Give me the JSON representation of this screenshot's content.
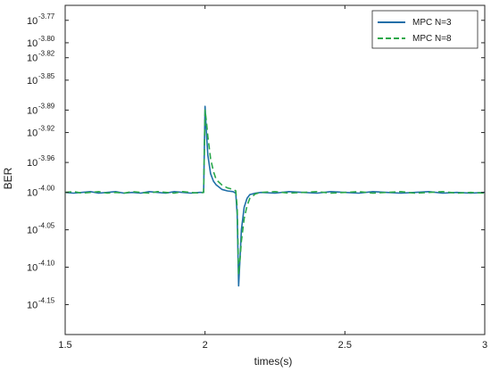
{
  "chart_data": {
    "type": "line",
    "xlabel": "times(s)",
    "ylabel": "BER",
    "xlim": [
      1.5,
      3.0
    ],
    "ylim": [
      -4.19,
      -3.75
    ],
    "x_ticks": [
      {
        "value": 1.5,
        "label": "1.5"
      },
      {
        "value": 2.0,
        "label": "2"
      },
      {
        "value": 2.5,
        "label": "2.5"
      },
      {
        "value": 3.0,
        "label": "3"
      }
    ],
    "y_ticks": [
      {
        "value": -3.77,
        "base": "10",
        "exp": "-3.77"
      },
      {
        "value": -3.8,
        "base": "10",
        "exp": "-3.80"
      },
      {
        "value": -3.82,
        "base": "10",
        "exp": "-3.82"
      },
      {
        "value": -3.85,
        "base": "10",
        "exp": "-3.85"
      },
      {
        "value": -3.89,
        "base": "10",
        "exp": "-3.89"
      },
      {
        "value": -3.92,
        "base": "10",
        "exp": "-3.92"
      },
      {
        "value": -3.96,
        "base": "10",
        "exp": "-3.96"
      },
      {
        "value": -4.0,
        "base": "10",
        "exp": "-4.00"
      },
      {
        "value": -4.05,
        "base": "10",
        "exp": "-4.05"
      },
      {
        "value": -4.1,
        "base": "10",
        "exp": "-4.10"
      },
      {
        "value": -4.15,
        "base": "10",
        "exp": "-4.15"
      }
    ],
    "grid": false,
    "legend_position": "top-right",
    "series": [
      {
        "name": "MPC N=3",
        "color": "#1f6fa8",
        "dash": "solid",
        "x": [
          1.5,
          1.53,
          1.56,
          1.59,
          1.62,
          1.65,
          1.68,
          1.71,
          1.74,
          1.77,
          1.8,
          1.83,
          1.86,
          1.89,
          1.92,
          1.95,
          1.98,
          1.995,
          2.0,
          2.005,
          2.01,
          2.02,
          2.03,
          2.04,
          2.06,
          2.08,
          2.1,
          2.11,
          2.115,
          2.12,
          2.125,
          2.13,
          2.14,
          2.15,
          2.16,
          2.18,
          2.2,
          2.25,
          2.3,
          2.35,
          2.4,
          2.45,
          2.5,
          2.55,
          2.6,
          2.65,
          2.7,
          2.75,
          2.8,
          2.85,
          2.9,
          2.95,
          3.0
        ],
        "values": [
          -4.0,
          -4.001,
          -4.0,
          -3.999,
          -4.001,
          -4.0,
          -3.999,
          -4.001,
          -4.0,
          -4.001,
          -3.999,
          -4.0,
          -4.001,
          -3.999,
          -4.0,
          -4.001,
          -4.0,
          -4.0,
          -3.885,
          -3.92,
          -3.95,
          -3.975,
          -3.985,
          -3.99,
          -3.996,
          -3.998,
          -3.999,
          -4.001,
          -4.03,
          -4.125,
          -4.09,
          -4.05,
          -4.02,
          -4.008,
          -4.003,
          -4.001,
          -4.0,
          -4.001,
          -3.999,
          -4.0,
          -4.001,
          -3.999,
          -4.0,
          -4.001,
          -3.999,
          -4.0,
          -4.001,
          -4.0,
          -3.999,
          -4.001,
          -4.0,
          -4.001,
          -4.0
        ]
      },
      {
        "name": "MPC N=8",
        "color": "#2aa84a",
        "dash": "dashed",
        "x": [
          1.5,
          1.53,
          1.56,
          1.59,
          1.62,
          1.65,
          1.68,
          1.71,
          1.74,
          1.77,
          1.8,
          1.83,
          1.86,
          1.89,
          1.92,
          1.95,
          1.98,
          1.995,
          2.0,
          2.005,
          2.01,
          2.02,
          2.03,
          2.04,
          2.06,
          2.08,
          2.1,
          2.11,
          2.115,
          2.12,
          2.125,
          2.13,
          2.14,
          2.15,
          2.16,
          2.18,
          2.2,
          2.25,
          2.3,
          2.35,
          2.4,
          2.45,
          2.5,
          2.55,
          2.6,
          2.65,
          2.7,
          2.75,
          2.8,
          2.85,
          2.9,
          2.95,
          3.0
        ],
        "values": [
          -4.0,
          -3.999,
          -4.001,
          -4.0,
          -3.999,
          -4.001,
          -4.0,
          -4.001,
          -3.999,
          -4.0,
          -4.001,
          -3.999,
          -4.0,
          -4.001,
          -3.999,
          -4.0,
          -4.001,
          -4.0,
          -3.89,
          -3.905,
          -3.925,
          -3.955,
          -3.972,
          -3.983,
          -3.99,
          -3.994,
          -3.996,
          -3.998,
          -4.02,
          -4.11,
          -4.09,
          -4.065,
          -4.035,
          -4.018,
          -4.008,
          -4.002,
          -4.0,
          -3.999,
          -4.001,
          -4.0,
          -3.999,
          -4.001,
          -4.0,
          -3.999,
          -4.001,
          -4.0,
          -3.999,
          -4.001,
          -4.0,
          -3.999,
          -4.001,
          -4.0,
          -4.001
        ]
      }
    ]
  }
}
